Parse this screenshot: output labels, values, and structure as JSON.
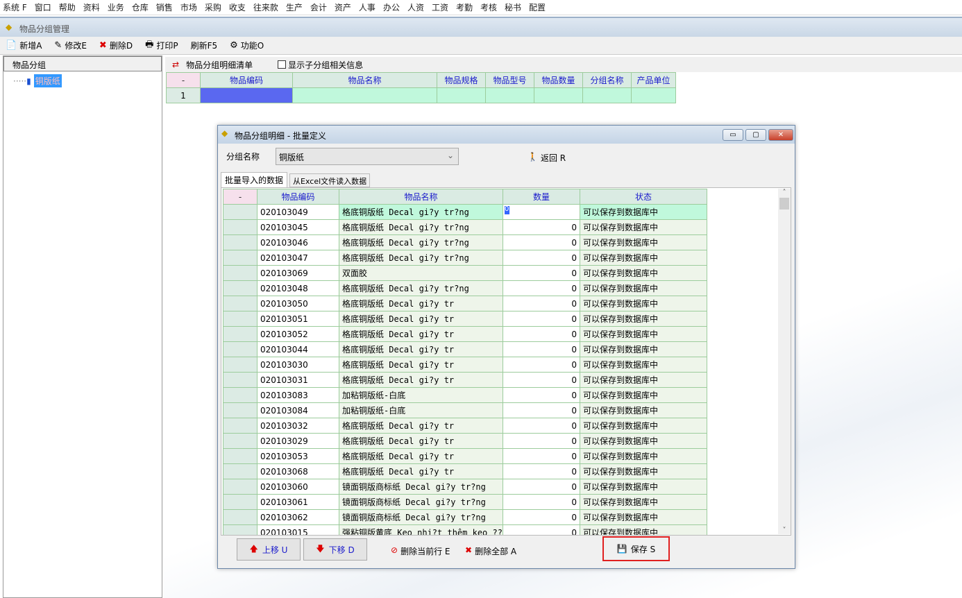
{
  "menu": [
    "系统 F",
    "窗口",
    "帮助",
    "资料",
    "业务",
    "仓库",
    "销售",
    "市场",
    "采购",
    "收支",
    "往来款",
    "生产",
    "会计",
    "资产",
    "人事",
    "办公",
    "人资",
    "工资",
    "考勤",
    "考核",
    "秘书",
    "配置"
  ],
  "window": {
    "title": "物品分组管理"
  },
  "toolbar": [
    {
      "icon": "add-icon",
      "glyph": "📄",
      "label": "新增A"
    },
    {
      "icon": "edit-icon",
      "glyph": "✎",
      "label": "修改E"
    },
    {
      "icon": "delete-icon",
      "glyph": "✖",
      "label": "删除D"
    },
    {
      "icon": "print-icon",
      "glyph": "🖶",
      "label": "打印P"
    },
    {
      "icon": "",
      "glyph": "",
      "label": "刷新F5"
    },
    {
      "icon": "function-icon",
      "glyph": "⚙",
      "label": "功能O"
    }
  ],
  "left": {
    "header": "物品分组",
    "tree_item": "铜版纸"
  },
  "right": {
    "title": "物品分组明细清单",
    "checkbox_label": "显示子分组相关信息",
    "checked": false,
    "columns": [
      "-",
      "物品编码",
      "物品名称",
      "物品规格",
      "物品型号",
      "物品数量",
      "分组名称",
      "产品单位"
    ],
    "row_num": "1"
  },
  "dialog": {
    "title": "物品分组明细 - 批量定义",
    "group_label": "分组名称",
    "group_value": "铜版纸",
    "return_label": "返回 R",
    "tabs": [
      "批量导入的数据",
      "从Excel文件读入数据"
    ],
    "columns": [
      "-",
      "物品编码",
      "物品名称",
      "数量",
      "状态"
    ],
    "rows": [
      [
        "020103049",
        "格底铜版纸 Decal gi?y tr?ng",
        "0",
        "可以保存到数据库中"
      ],
      [
        "020103045",
        "格底铜版纸 Decal gi?y tr?ng",
        "0",
        "可以保存到数据库中"
      ],
      [
        "020103046",
        "格底铜版纸 Decal gi?y tr?ng",
        "0",
        "可以保存到数据库中"
      ],
      [
        "020103047",
        "格底铜版纸 Decal gi?y tr?ng",
        "0",
        "可以保存到数据库中"
      ],
      [
        "020103069",
        "双面胶",
        "0",
        "可以保存到数据库中"
      ],
      [
        "020103048",
        "格底铜版纸 Decal gi?y tr?ng",
        "0",
        "可以保存到数据库中"
      ],
      [
        "020103050",
        "格底铜版纸 Decal gi?y tr",
        "0",
        "可以保存到数据库中"
      ],
      [
        "020103051",
        "格底铜版纸 Decal gi?y tr",
        "0",
        "可以保存到数据库中"
      ],
      [
        "020103052",
        "格底铜版纸 Decal gi?y tr",
        "0",
        "可以保存到数据库中"
      ],
      [
        "020103044",
        "格底铜版纸 Decal gi?y tr",
        "0",
        "可以保存到数据库中"
      ],
      [
        "020103030",
        "格底铜版纸 Decal gi?y tr",
        "0",
        "可以保存到数据库中"
      ],
      [
        "020103031",
        "格底铜版纸 Decal gi?y tr",
        "0",
        "可以保存到数据库中"
      ],
      [
        "020103083",
        "加粘铜版纸-白底",
        "0",
        "可以保存到数据库中"
      ],
      [
        "020103084",
        "加粘铜版纸-白底",
        "0",
        "可以保存到数据库中"
      ],
      [
        "020103032",
        "格底铜版纸 Decal gi?y tr",
        "0",
        "可以保存到数据库中"
      ],
      [
        "020103029",
        "格底铜版纸 Decal gi?y tr",
        "0",
        "可以保存到数据库中"
      ],
      [
        "020103053",
        "格底铜版纸 Decal gi?y tr",
        "0",
        "可以保存到数据库中"
      ],
      [
        "020103068",
        "格底铜版纸 Decal gi?y tr",
        "0",
        "可以保存到数据库中"
      ],
      [
        "020103060",
        "镜面铜版商标纸 Decal gi?y tr?ng",
        "0",
        "可以保存到数据库中"
      ],
      [
        "020103061",
        "镜面铜版商标纸 Decal gi?y tr?ng",
        "0",
        "可以保存到数据库中"
      ],
      [
        "020103062",
        "镜面铜版商标纸 Decal gi?y tr?ng",
        "0",
        "可以保存到数据库中"
      ],
      [
        "020103015",
        "强粘铜版黄底 Keo nhi?t thêm keo ?? vàn",
        "0",
        "可以保存到数据库中"
      ]
    ],
    "buttons": {
      "up": "上移 U",
      "down": "下移 D",
      "delete_row": "删除当前行 E",
      "delete_all": "删除全部 A",
      "save": "保存 S"
    }
  },
  "colors": {
    "selected_row": "#c0f8dc",
    "selected_cell": "#5a68f0",
    "highlight_border": "#e02020",
    "link": "#1a1acc"
  }
}
